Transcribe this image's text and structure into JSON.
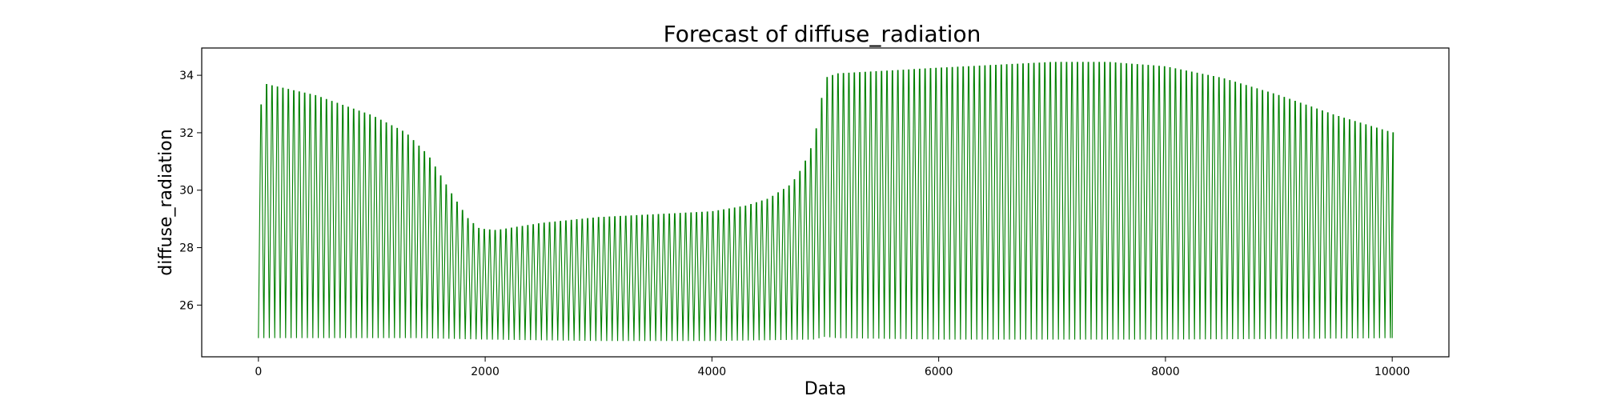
{
  "chart_data": {
    "type": "line",
    "title": "Forecast of diffuse_radiation",
    "xlabel": "Data",
    "ylabel": "diffuse_radiation",
    "xlim": [
      -500,
      10500
    ],
    "ylim": [
      24.2,
      34.95
    ],
    "xticks": [
      0,
      2000,
      4000,
      6000,
      8000,
      10000
    ],
    "yticks": [
      26,
      28,
      30,
      32,
      34
    ],
    "grid": false,
    "legend": "none",
    "color": "#008000",
    "period": 48,
    "x_range": [
      0,
      10000
    ],
    "series": [
      {
        "upper_envelope": [
          {
            "x": 0,
            "y": 32.3
          },
          {
            "x": 50,
            "y": 33.7
          },
          {
            "x": 500,
            "y": 33.3
          },
          {
            "x": 1000,
            "y": 32.6
          },
          {
            "x": 1300,
            "y": 32.0
          },
          {
            "x": 1500,
            "y": 31.2
          },
          {
            "x": 1700,
            "y": 29.9
          },
          {
            "x": 1850,
            "y": 29.0
          },
          {
            "x": 1950,
            "y": 28.65
          },
          {
            "x": 2100,
            "y": 28.6
          },
          {
            "x": 2500,
            "y": 28.85
          },
          {
            "x": 3000,
            "y": 29.05
          },
          {
            "x": 3500,
            "y": 29.15
          },
          {
            "x": 4000,
            "y": 29.25
          },
          {
            "x": 4300,
            "y": 29.45
          },
          {
            "x": 4500,
            "y": 29.7
          },
          {
            "x": 4700,
            "y": 30.2
          },
          {
            "x": 4800,
            "y": 30.8
          },
          {
            "x": 4900,
            "y": 31.7
          },
          {
            "x": 4950,
            "y": 32.8
          },
          {
            "x": 5000,
            "y": 33.9
          },
          {
            "x": 5100,
            "y": 34.05
          },
          {
            "x": 6000,
            "y": 34.25
          },
          {
            "x": 7000,
            "y": 34.45
          },
          {
            "x": 7500,
            "y": 34.45
          },
          {
            "x": 8000,
            "y": 34.3
          },
          {
            "x": 8500,
            "y": 33.9
          },
          {
            "x": 9000,
            "y": 33.3
          },
          {
            "x": 9500,
            "y": 32.6
          },
          {
            "x": 10000,
            "y": 32.0
          }
        ],
        "lower_envelope": [
          {
            "x": 0,
            "y": 24.85
          },
          {
            "x": 1000,
            "y": 24.85
          },
          {
            "x": 1400,
            "y": 24.85
          },
          {
            "x": 2000,
            "y": 24.8
          },
          {
            "x": 3000,
            "y": 24.75
          },
          {
            "x": 4000,
            "y": 24.75
          },
          {
            "x": 4900,
            "y": 24.8
          },
          {
            "x": 5000,
            "y": 24.9
          },
          {
            "x": 5100,
            "y": 24.85
          },
          {
            "x": 6000,
            "y": 24.8
          },
          {
            "x": 7000,
            "y": 24.8
          },
          {
            "x": 8000,
            "y": 24.8
          },
          {
            "x": 9000,
            "y": 24.82
          },
          {
            "x": 10000,
            "y": 24.85
          }
        ]
      }
    ]
  }
}
